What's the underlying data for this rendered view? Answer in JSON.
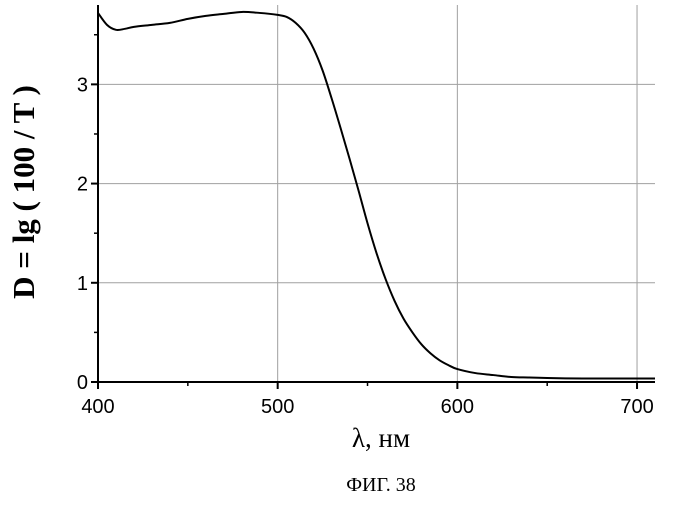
{
  "chart_data": {
    "type": "line",
    "title": "",
    "caption": "ФИГ. 38",
    "xlabel": "λ, нм",
    "ylabel": "D = lg ( 100 / T )",
    "xlim": [
      400,
      710
    ],
    "ylim": [
      0,
      3.8
    ],
    "x_ticks": [
      400,
      500,
      600,
      700
    ],
    "y_ticks": [
      0,
      1,
      2,
      3
    ],
    "grid": true,
    "legend": "none",
    "line_color": "#000000",
    "series": [
      {
        "x": [
          400,
          405,
          410,
          415,
          420,
          430,
          440,
          450,
          460,
          470,
          480,
          490,
          500,
          505,
          510,
          515,
          520,
          525,
          530,
          535,
          540,
          545,
          550,
          555,
          560,
          565,
          570,
          575,
          580,
          585,
          590,
          595,
          600,
          610,
          620,
          630,
          640,
          650,
          660,
          670,
          680,
          690,
          700,
          710
        ],
        "values": [
          3.72,
          3.6,
          3.55,
          3.56,
          3.58,
          3.6,
          3.62,
          3.66,
          3.69,
          3.71,
          3.73,
          3.72,
          3.7,
          3.68,
          3.62,
          3.52,
          3.36,
          3.14,
          2.86,
          2.56,
          2.25,
          1.93,
          1.6,
          1.3,
          1.04,
          0.82,
          0.64,
          0.5,
          0.38,
          0.29,
          0.22,
          0.17,
          0.13,
          0.09,
          0.07,
          0.05,
          0.045,
          0.04,
          0.037,
          0.035,
          0.035,
          0.035,
          0.035,
          0.035
        ]
      }
    ]
  }
}
